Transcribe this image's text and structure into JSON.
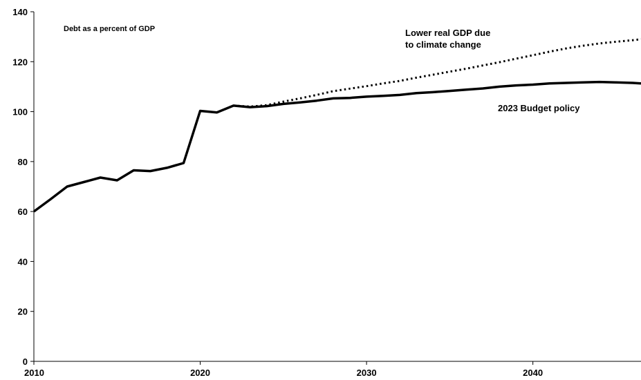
{
  "chart_data": {
    "type": "line",
    "title": "",
    "xlabel": "",
    "ylabel": "",
    "xlim": [
      2010,
      2046.5
    ],
    "ylim": [
      0,
      140
    ],
    "x_ticks": [
      2010,
      2020,
      2030,
      2040
    ],
    "y_ticks": [
      0,
      20,
      40,
      60,
      80,
      100,
      120,
      140
    ],
    "grid": false,
    "legend": "none",
    "annotations": [
      {
        "id": "note",
        "text": "Debt as a percent of GDP"
      },
      {
        "id": "series-climate-label-1",
        "text": "Lower real GDP due"
      },
      {
        "id": "series-climate-label-2",
        "text": "to climate change"
      },
      {
        "id": "series-budget-label",
        "text": "2023 Budget policy"
      }
    ],
    "series": [
      {
        "key": "budget",
        "style": "solid",
        "color": "#000000",
        "x": [
          2010,
          2011,
          2012,
          2013,
          2014,
          2015,
          2016,
          2017,
          2018,
          2019,
          2020,
          2021,
          2022,
          2023,
          2024,
          2025,
          2026,
          2027,
          2028,
          2029,
          2030,
          2031,
          2032,
          2033,
          2034,
          2035,
          2036,
          2037,
          2038,
          2039,
          2040,
          2041,
          2042,
          2043,
          2044,
          2045,
          2046,
          2046.5
        ],
        "values": [
          60.0,
          64.9,
          70.0,
          71.8,
          73.6,
          72.5,
          76.5,
          76.2,
          77.5,
          79.4,
          100.3,
          99.7,
          102.4,
          101.8,
          102.2,
          103.1,
          103.7,
          104.4,
          105.3,
          105.5,
          106.0,
          106.3,
          106.7,
          107.4,
          107.8,
          108.3,
          108.8,
          109.3,
          110.0,
          110.5,
          110.8,
          111.3,
          111.5,
          111.7,
          111.9,
          111.7,
          111.5,
          111.3
        ]
      },
      {
        "key": "climate",
        "style": "dotted",
        "color": "#000000",
        "x": [
          2022,
          2023,
          2024,
          2025,
          2026,
          2027,
          2028,
          2029,
          2030,
          2031,
          2032,
          2033,
          2034,
          2035,
          2036,
          2037,
          2038,
          2039,
          2040,
          2041,
          2042,
          2043,
          2044,
          2045,
          2046,
          2046.5
        ],
        "values": [
          102.4,
          102.0,
          102.6,
          104.0,
          105.3,
          106.7,
          108.2,
          109.2,
          110.2,
          111.3,
          112.3,
          113.6,
          114.8,
          116.0,
          117.2,
          118.5,
          119.8,
          121.2,
          122.6,
          124.0,
          125.3,
          126.4,
          127.3,
          128.0,
          128.6,
          129.0
        ]
      }
    ]
  }
}
